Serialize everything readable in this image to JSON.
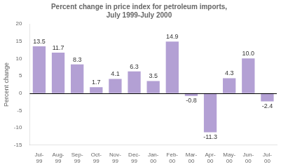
{
  "chart_data": {
    "type": "bar",
    "title": "Percent change in price index for petroleum imports,\nJuly 1999-July 2000",
    "ylabel": "Percent change",
    "categories": [
      "Jul-\n99",
      "Aug-\n99",
      "Sep-\n99",
      "Oct-\n99",
      "Nov-\n99",
      "Dec-\n99",
      "Jan-\n00",
      "Feb-\n00",
      "Mar-\n00",
      "Apr-\n00",
      "May-\n00",
      "Jun-\n00",
      "Jul-\n00"
    ],
    "values": [
      13.5,
      11.7,
      8.3,
      1.7,
      4.1,
      6.3,
      3.5,
      14.9,
      -0.8,
      -11.3,
      4.3,
      10.0,
      -2.4
    ],
    "value_labels": [
      "13.5",
      "11.7",
      "8.3",
      "1.7",
      "4.1",
      "6.3",
      "3.5",
      "14.9",
      "-0.8",
      "-11.3",
      "4.3",
      "10.0",
      "-2.4"
    ],
    "color": "#b3a0d4",
    "ylim": [
      -15,
      20
    ],
    "yticks": [
      -15,
      -10,
      -5,
      0,
      5,
      10,
      15,
      20
    ],
    "grid": false,
    "data_labels": true
  }
}
